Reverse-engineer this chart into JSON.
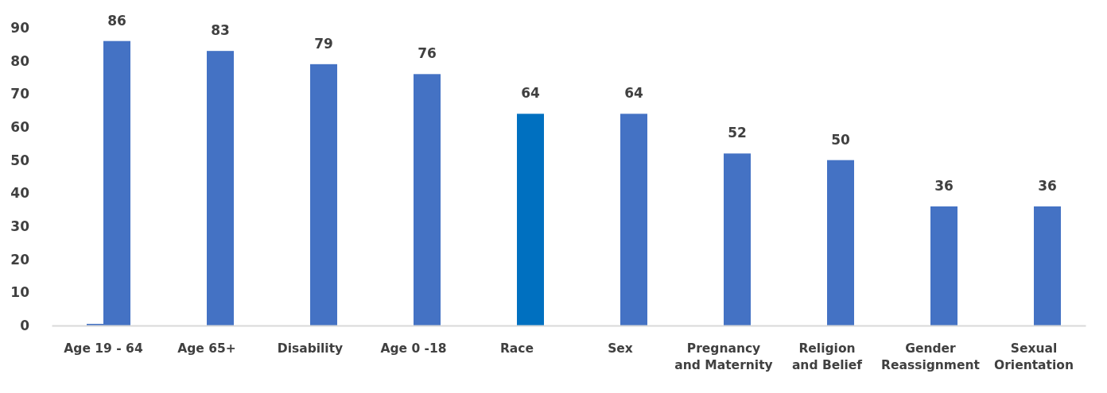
{
  "chart_data": {
    "type": "bar",
    "categories": [
      "Age 19 - 64",
      "Age 65+",
      "Disability",
      "Age 0 -18",
      "Race",
      "Sex",
      "Pregnancy and Maternity",
      "Religion and Belief",
      "Gender Reassignment",
      "Sexual Orientation"
    ],
    "series": [
      {
        "color": "#4472c4",
        "values": [
          0.5,
          null,
          null,
          null,
          null,
          null,
          null,
          null,
          null,
          null
        ]
      },
      {
        "colors": [
          "#4472c4",
          "#4472c4",
          "#4472c4",
          "#4472c4",
          "#0070c0",
          "#4472c4",
          "#4472c4",
          "#4472c4",
          "#4472c4",
          "#4472c4"
        ],
        "values": [
          86,
          83,
          79,
          76,
          64,
          64,
          52,
          50,
          36,
          36
        ],
        "value_labels": [
          "86",
          "83",
          "79",
          "76",
          "64",
          "64",
          "52",
          "50",
          "36",
          "36"
        ]
      }
    ],
    "ylim": [
      0,
      90
    ],
    "yticks": [
      0,
      10,
      20,
      30,
      40,
      50,
      60,
      70,
      80,
      90
    ],
    "grid": false
  }
}
